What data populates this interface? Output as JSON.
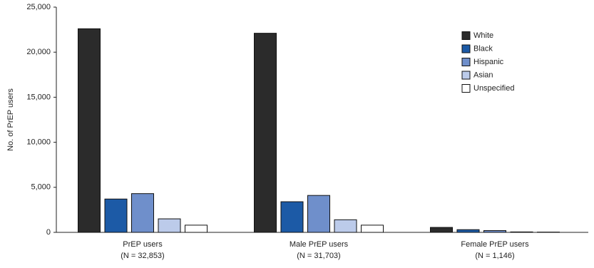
{
  "chart_data": {
    "type": "bar",
    "y_label": "No. of PrEP users",
    "categories": [
      "PrEP users",
      "Male PrEP users",
      "Female PrEP users"
    ],
    "category_counts": [
      "(N = 32,853)",
      "(N = 31,703)",
      "(N = 1,146)"
    ],
    "series": [
      {
        "name": "White",
        "color": "#2b2b2b",
        "values": [
          22600,
          22100,
          550
        ]
      },
      {
        "name": "Black",
        "color": "#1c5aa6",
        "values": [
          3700,
          3400,
          300
        ]
      },
      {
        "name": "Hispanic",
        "color": "#6f8fcb",
        "values": [
          4300,
          4100,
          200
        ]
      },
      {
        "name": "Asian",
        "color": "#bccbea",
        "values": [
          1500,
          1400,
          50
        ]
      },
      {
        "name": "Unspecified",
        "color": "#ffffff",
        "values": [
          800,
          800,
          30
        ]
      }
    ],
    "ylim": [
      0,
      25000
    ],
    "yticks": [
      0,
      {
        "value": 5000,
        "label": "5,000"
      },
      {
        "value": 10000,
        "label": "10,000"
      },
      {
        "value": 15000,
        "label": "15,000"
      },
      {
        "value": 20000,
        "label": "20,000"
      },
      {
        "value": 25000,
        "label": "25,000"
      }
    ],
    "legend": "upper-right",
    "grid": false
  }
}
